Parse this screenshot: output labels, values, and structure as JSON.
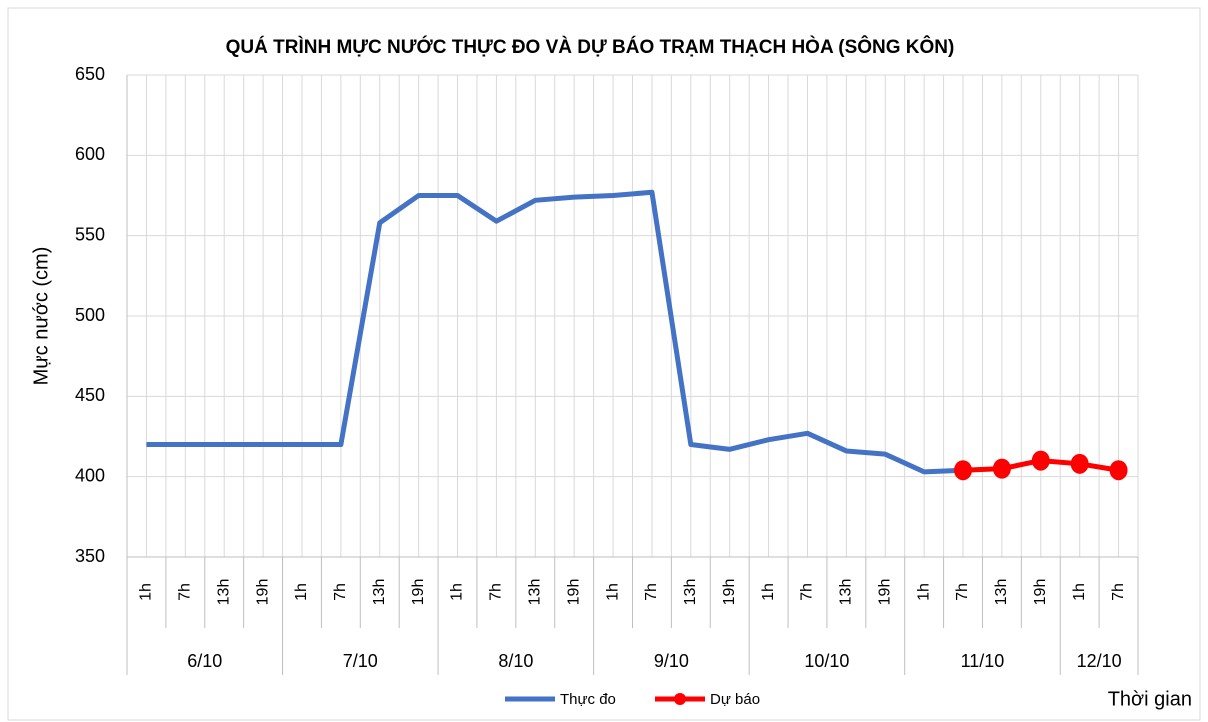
{
  "chart_data": {
    "type": "line",
    "title": "QUÁ TRÌNH MỰC NƯỚC THỰC ĐO VÀ DỰ BÁO TRẠM THẠCH HÒA (SÔNG KÔN)",
    "y_label": "Mực nước (cm)",
    "x_label": "Thời gian",
    "categories": [
      "1h",
      "7h",
      "13h",
      "19h",
      "1h",
      "7h",
      "13h",
      "19h",
      "1h",
      "7h",
      "13h",
      "19h",
      "1h",
      "7h",
      "13h",
      "19h",
      "1h",
      "7h",
      "13h",
      "19h",
      "1h",
      "7h",
      "13h",
      "19h",
      "1h",
      "7h"
    ],
    "dates": [
      "6/10",
      "6/10",
      "6/10",
      "6/10",
      "7/10",
      "7/10",
      "7/10",
      "7/10",
      "8/10",
      "8/10",
      "8/10",
      "8/10",
      "9/10",
      "9/10",
      "9/10",
      "9/10",
      "10/10",
      "10/10",
      "10/10",
      "10/10",
      "11/10",
      "11/10",
      "11/10",
      "11/10",
      "12/10",
      "12/10"
    ],
    "series": [
      {
        "name": "Thực đo",
        "color": "#4472c4",
        "values": [
          420,
          420,
          420,
          420,
          420,
          420,
          558,
          575,
          575,
          559,
          572,
          574,
          575,
          577,
          420,
          417,
          423,
          427,
          416,
          414,
          403,
          404,
          null,
          null,
          null,
          null
        ]
      },
      {
        "name": "Dự báo",
        "color": "#ff0000",
        "markers": true,
        "values": [
          null,
          null,
          null,
          null,
          null,
          null,
          null,
          null,
          null,
          null,
          null,
          null,
          null,
          null,
          null,
          null,
          null,
          null,
          null,
          null,
          null,
          404,
          405,
          410,
          408,
          404
        ]
      }
    ],
    "ylim": [
      350,
      650
    ],
    "yticks": [
      350,
      400,
      450,
      500,
      550,
      600,
      650
    ],
    "grid": true,
    "legend": "bottom"
  }
}
